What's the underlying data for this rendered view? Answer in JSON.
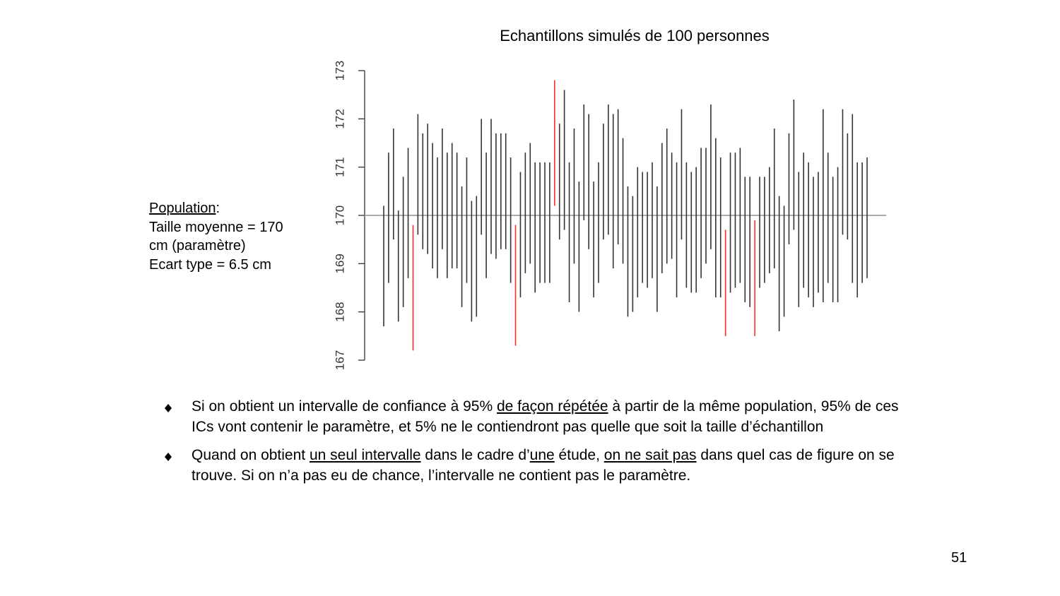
{
  "chart_data": {
    "type": "interval",
    "title": "Echantillons simulés de 100 personnes",
    "ylim": [
      167,
      173
    ],
    "yticks": [
      167,
      168,
      169,
      170,
      171,
      172,
      173
    ],
    "reference": 170,
    "reference_color": "#aaaaaa",
    "color": "#333333",
    "miss_color": "#ff2a2a",
    "upper": [
      170.2,
      171.3,
      171.8,
      170.1,
      170.8,
      171.4,
      169.8,
      172.1,
      171.7,
      171.9,
      171.5,
      171.2,
      171.8,
      171.3,
      171.5,
      171.3,
      170.6,
      171.2,
      170.3,
      170.4,
      172.0,
      171.3,
      172.0,
      171.7,
      171.7,
      171.7,
      171.2,
      169.8,
      170.9,
      171.3,
      171.5,
      171.1,
      171.1,
      171.1,
      171.1,
      172.8,
      171.9,
      172.6,
      171.1,
      171.8,
      170.7,
      172.3,
      172.1,
      170.7,
      171.1,
      171.9,
      172.3,
      172.1,
      172.2,
      171.6,
      170.6,
      170.4,
      171.0,
      170.9,
      170.9,
      171.1,
      170.6,
      171.5,
      171.8,
      171.3,
      171.1,
      172.2,
      171.1,
      170.9,
      171.0,
      171.4,
      171.4,
      172.3,
      171.6,
      171.2,
      169.7,
      171.3,
      171.3,
      171.4,
      170.8,
      170.8,
      169.9,
      170.8,
      170.8,
      171.0,
      171.8,
      170.4,
      170.2,
      171.7,
      172.4,
      170.9,
      171.3,
      171.1,
      170.8,
      170.9,
      172.2,
      171.3,
      170.8,
      171.0,
      172.2,
      171.7,
      172.1,
      171.1,
      171.1,
      171.2
    ],
    "lower": [
      167.7,
      168.6,
      169.5,
      167.8,
      168.1,
      168.7,
      167.2,
      169.6,
      169.3,
      169.2,
      168.9,
      168.7,
      169.3,
      168.7,
      168.9,
      168.9,
      168.1,
      168.6,
      167.8,
      167.9,
      169.6,
      168.7,
      169.2,
      169.1,
      169.3,
      169.3,
      168.6,
      167.3,
      168.3,
      168.8,
      169.0,
      168.4,
      168.6,
      168.6,
      168.6,
      170.2,
      169.5,
      169.7,
      168.2,
      169.0,
      168.0,
      169.9,
      169.3,
      168.3,
      168.6,
      169.5,
      169.6,
      168.9,
      169.4,
      169.0,
      167.9,
      168.0,
      168.3,
      168.6,
      168.5,
      168.7,
      168.0,
      168.8,
      169.0,
      169.1,
      168.3,
      169.5,
      168.5,
      168.4,
      168.4,
      168.7,
      169.0,
      169.3,
      168.3,
      168.3,
      167.5,
      168.4,
      168.5,
      168.6,
      168.2,
      168.1,
      167.5,
      168.5,
      168.6,
      168.8,
      168.9,
      167.6,
      167.9,
      169.4,
      169.7,
      168.1,
      168.5,
      168.3,
      168.1,
      168.4,
      168.2,
      168.6,
      168.2,
      168.2,
      169.6,
      169.5,
      168.6,
      168.3,
      168.6,
      168.7
    ]
  },
  "population": {
    "heading": "Population",
    "heading_suffix": ":",
    "lines": [
      "Taille moyenne = 170",
      "cm (paramètre)",
      "Ecart type = 6.5 cm"
    ]
  },
  "bullets": [
    [
      {
        "text": "Si on obtient un intervalle de confiance à 95% "
      },
      {
        "text": "de façon répétée",
        "underline": true
      },
      {
        "text": " à partir de la même population, 95% de ces ICs vont contenir le paramètre, et 5% ne le contiendront pas quelle que soit la taille d’échantillon"
      }
    ],
    [
      {
        "text": "Quand on obtient "
      },
      {
        "text": "un seul intervalle",
        "underline": true
      },
      {
        "text": " dans le cadre d’"
      },
      {
        "text": "une",
        "underline": true
      },
      {
        "text": " étude, "
      },
      {
        "text": "on ne sait pas",
        "underline": true
      },
      {
        "text": " dans quel cas de figure on se trouve. Si on n’a pas eu de chance, l’intervalle ne contient pas le paramètre."
      }
    ]
  ],
  "page_number": "51"
}
